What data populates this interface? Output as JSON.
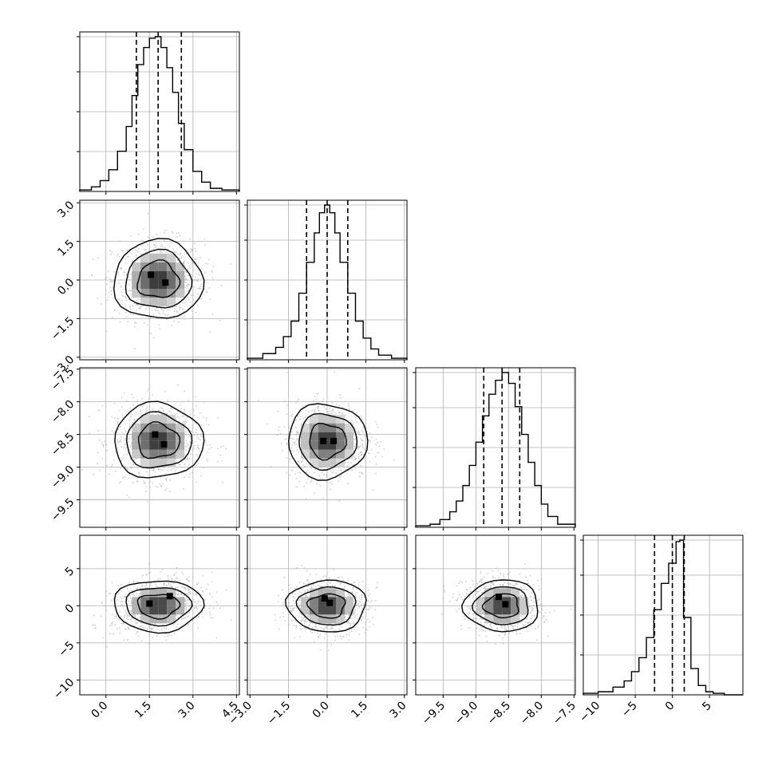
{
  "colors": {
    "ink": "#000000",
    "grid": "#b0b0b0",
    "scatter": "#b8b8b8",
    "background": "#ffffff"
  },
  "chart_data": {
    "type": "corner",
    "title": "",
    "grid": true,
    "parameters": [
      {
        "range": [
          -0.9,
          4.6
        ],
        "ticks": [
          0.0,
          1.5,
          3.0,
          4.5
        ],
        "tick_labels": [
          "0.0",
          "1.5",
          "3.0",
          "4.5"
        ],
        "quantiles": [
          1.05,
          1.8,
          2.6
        ]
      },
      {
        "range": [
          -3.1,
          3.1
        ],
        "ticks": [
          -3.0,
          -1.5,
          0.0,
          1.5,
          3.0
        ],
        "tick_labels": [
          "−3.0",
          "−1.5",
          "0.0",
          "1.5",
          "3.0"
        ],
        "quantiles": [
          -0.8,
          0.0,
          0.8
        ]
      },
      {
        "range": [
          -9.92,
          -7.48
        ],
        "ticks": [
          -9.5,
          -9.0,
          -8.5,
          -8.0,
          -7.5
        ],
        "tick_labels": [
          "−9.5",
          "−9.0",
          "−8.5",
          "−8.0",
          "−7.5"
        ],
        "quantiles": [
          -8.88,
          -8.6,
          -8.33
        ]
      },
      {
        "range": [
          -12.0,
          9.5
        ],
        "ticks": [
          -10,
          -5,
          0,
          5
        ],
        "tick_labels": [
          "−10",
          "−5",
          "0",
          "5"
        ],
        "quantiles": [
          -2.4,
          0.0,
          1.6
        ]
      }
    ],
    "row_labels": {
      "1": [
        "−3.0",
        "−1.5",
        "0.0",
        "1.5",
        "3.0"
      ],
      "2": [
        "−9.5",
        "−9.0",
        "−8.5",
        "−8.0",
        "−7.5"
      ],
      "3": [
        "−10",
        "−5",
        "0",
        "5"
      ]
    },
    "histograms": [
      {
        "param": 0,
        "edges": [
          -0.9,
          -0.5,
          -0.2,
          0.1,
          0.4,
          0.7,
          0.9,
          1.1,
          1.3,
          1.5,
          1.7,
          1.9,
          2.1,
          2.3,
          2.5,
          2.7,
          3.0,
          3.3,
          3.6,
          4.0,
          4.6
        ],
        "counts": [
          0.01,
          0.03,
          0.07,
          0.14,
          0.26,
          0.42,
          0.62,
          0.82,
          0.93,
          0.99,
          1.0,
          0.93,
          0.8,
          0.64,
          0.44,
          0.27,
          0.13,
          0.06,
          0.02,
          0.01
        ]
      },
      {
        "param": 1,
        "edges": [
          -3.1,
          -2.5,
          -2.0,
          -1.7,
          -1.4,
          -1.1,
          -0.8,
          -0.5,
          -0.3,
          -0.1,
          0.1,
          0.3,
          0.5,
          0.8,
          1.1,
          1.4,
          1.7,
          2.0,
          2.5,
          3.1
        ],
        "counts": [
          0.01,
          0.04,
          0.08,
          0.15,
          0.25,
          0.43,
          0.63,
          0.82,
          0.95,
          1.0,
          0.95,
          0.82,
          0.63,
          0.43,
          0.25,
          0.14,
          0.07,
          0.03,
          0.01
        ]
      },
      {
        "param": 2,
        "edges": [
          -9.92,
          -9.7,
          -9.55,
          -9.4,
          -9.3,
          -9.2,
          -9.1,
          -9.0,
          -8.9,
          -8.8,
          -8.7,
          -8.6,
          -8.5,
          -8.4,
          -8.3,
          -8.2,
          -8.1,
          -8.0,
          -7.9,
          -7.75,
          -7.48
        ],
        "counts": [
          0.01,
          0.02,
          0.05,
          0.1,
          0.17,
          0.27,
          0.4,
          0.55,
          0.72,
          0.86,
          0.95,
          1.0,
          0.93,
          0.78,
          0.6,
          0.42,
          0.27,
          0.15,
          0.07,
          0.02
        ]
      },
      {
        "param": 3,
        "edges": [
          -12.0,
          -10.0,
          -8.0,
          -6.5,
          -5.5,
          -4.5,
          -3.5,
          -2.5,
          -1.5,
          -0.5,
          0.5,
          1.0,
          1.5,
          2.5,
          3.5,
          4.5,
          5.5,
          7.0,
          9.5
        ],
        "counts": [
          0.01,
          0.02,
          0.05,
          0.09,
          0.15,
          0.24,
          0.37,
          0.55,
          0.72,
          0.85,
          0.99,
          1.0,
          0.5,
          0.17,
          0.06,
          0.02,
          0.01,
          0.0
        ]
      }
    ],
    "joint_distributions": [
      {
        "x": 0,
        "y": 1,
        "center": [
          1.8,
          0.0
        ],
        "spread": [
          0.75,
          0.75
        ],
        "correlation": 0.0,
        "peaks": [
          [
            1.55,
            0.2
          ],
          [
            2.05,
            -0.1
          ]
        ]
      },
      {
        "x": 0,
        "y": 2,
        "center": [
          1.8,
          -8.6
        ],
        "spread": [
          0.75,
          0.28
        ],
        "correlation": 0.0,
        "peaks": [
          [
            1.7,
            -8.5
          ],
          [
            2.0,
            -8.65
          ]
        ]
      },
      {
        "x": 1,
        "y": 2,
        "center": [
          0.0,
          -8.6
        ],
        "spread": [
          0.75,
          0.28
        ],
        "correlation": 0.0,
        "peaks": [
          [
            -0.15,
            -8.6
          ],
          [
            0.25,
            -8.6
          ]
        ]
      },
      {
        "x": 0,
        "y": 3,
        "center": [
          1.8,
          0.0
        ],
        "spread": [
          0.75,
          1.7
        ],
        "correlation": 0.2,
        "peaks": [
          [
            1.5,
            0.3
          ],
          [
            2.2,
            1.3
          ]
        ]
      },
      {
        "x": 1,
        "y": 3,
        "center": [
          0.0,
          0.0
        ],
        "spread": [
          0.75,
          1.7
        ],
        "correlation": 0.0,
        "peaks": [
          [
            -0.1,
            1.0
          ],
          [
            0.1,
            0.4
          ]
        ]
      },
      {
        "x": 2,
        "y": 3,
        "center": [
          -8.6,
          0.0
        ],
        "spread": [
          0.28,
          1.7
        ],
        "correlation": -0.1,
        "peaks": [
          [
            -8.65,
            1.2
          ],
          [
            -8.55,
            0.2
          ]
        ]
      }
    ]
  }
}
